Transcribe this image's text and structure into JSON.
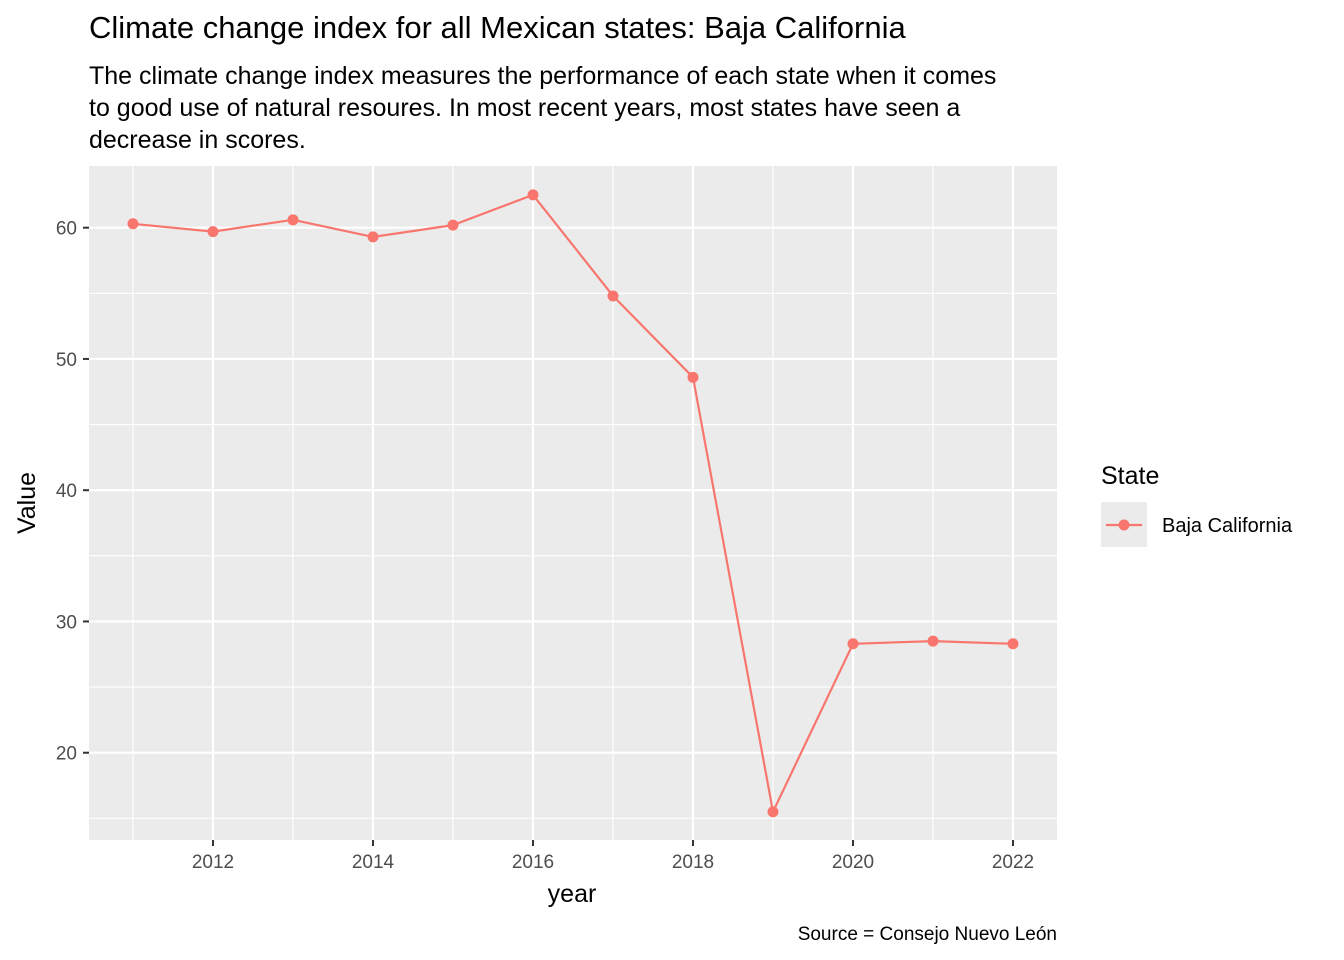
{
  "chart_data": {
    "type": "line",
    "title": "Climate change index for all Mexican states: Baja California",
    "subtitle_lines": [
      "The climate change index measures the performance of each state when it comes",
      "to good use of natural resoures. In most recent years, most states have seen a",
      "decrease in scores."
    ],
    "xlabel": "year",
    "ylabel": "Value",
    "caption": "Source = Consejo Nuevo León",
    "legend_title": "State",
    "legend_position": "right",
    "grid": true,
    "xlim": [
      2010.45,
      2022.55
    ],
    "ylim": [
      13.35,
      64.7
    ],
    "x_ticks": [
      2012,
      2014,
      2016,
      2018,
      2020,
      2022
    ],
    "y_ticks": [
      20,
      30,
      40,
      50,
      60
    ],
    "series": [
      {
        "name": "Baja California",
        "color": "#F8766D",
        "x": [
          2011,
          2012,
          2013,
          2014,
          2015,
          2016,
          2017,
          2018,
          2019,
          2020,
          2021,
          2022
        ],
        "y": [
          60.3,
          59.7,
          60.6,
          59.3,
          60.2,
          62.5,
          54.8,
          48.6,
          15.5,
          28.3,
          28.5,
          28.3
        ]
      }
    ]
  }
}
